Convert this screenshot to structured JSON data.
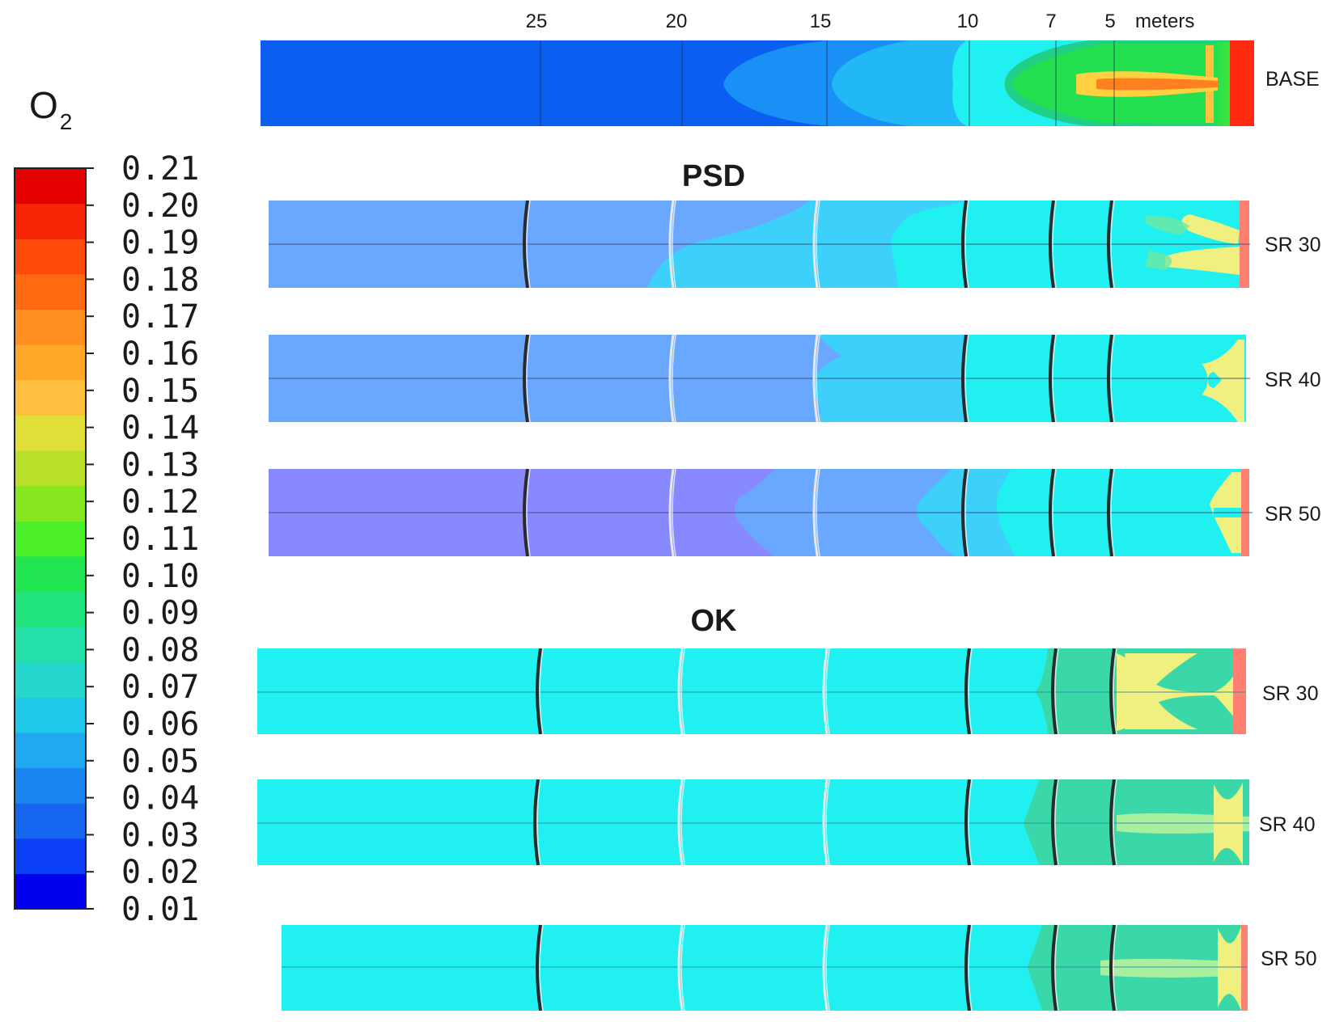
{
  "variable": {
    "symbol": "O",
    "subscript": "2"
  },
  "colorbar": {
    "min": 0.01,
    "max": 0.21,
    "step": 0.01,
    "tick_labels": [
      "0.21",
      "0.20",
      "0.19",
      "0.18",
      "0.17",
      "0.16",
      "0.15",
      "0.14",
      "0.13",
      "0.12",
      "0.11",
      "0.10",
      "0.09",
      "0.08",
      "0.07",
      "0.06",
      "0.05",
      "0.04",
      "0.03",
      "0.02",
      "0.01"
    ],
    "colors": [
      "#0000ee",
      "#0a3ff5",
      "#1565ee",
      "#1b86f0",
      "#20a8f0",
      "#1fc8e8",
      "#25d6cc",
      "#22e0a8",
      "#20e47c",
      "#20e450",
      "#4cf028",
      "#88e820",
      "#b8e028",
      "#e0e038",
      "#ffc040",
      "#ffa828",
      "#ff9020",
      "#ff6a10",
      "#ff4a0a",
      "#f52505",
      "#e50000"
    ]
  },
  "distance": {
    "unit_label": "meters",
    "ticks": [
      "25",
      "20",
      "15",
      "10",
      "7",
      "5"
    ]
  },
  "groups": [
    {
      "title": "",
      "key": "base"
    },
    {
      "title": "PSD",
      "key": "psd"
    },
    {
      "title": "OK",
      "key": "ok"
    }
  ],
  "rows": [
    {
      "label": "BASE",
      "group": "base"
    },
    {
      "label": "SR 30",
      "group": "psd"
    },
    {
      "label": "SR 40",
      "group": "psd"
    },
    {
      "label": "SR 50",
      "group": "psd"
    },
    {
      "label": "SR 30",
      "group": "ok"
    },
    {
      "label": "SR 40",
      "group": "ok"
    },
    {
      "label": "SR 50",
      "group": "ok"
    }
  ]
}
